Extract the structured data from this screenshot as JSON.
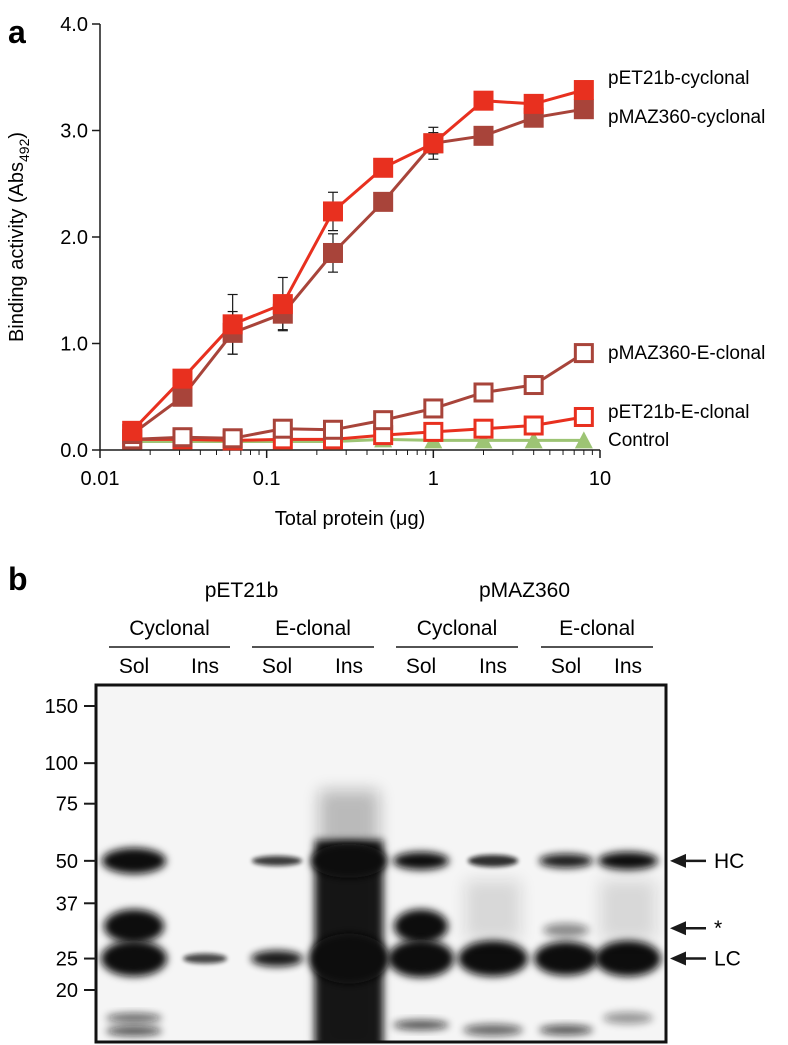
{
  "chart_data": [
    {
      "type": "line",
      "panel_label": "a",
      "xlabel_main": "Total protein (",
      "xlabel_unit": "μg",
      "xlabel_end": ")",
      "ylabel_main": "Binding activity (Abs",
      "ylabel_sub": "492",
      "ylabel_end": ")",
      "x_scale": "log",
      "xlim": [
        0.01,
        10
      ],
      "ylim": [
        0,
        4.0
      ],
      "x_ticks": [
        0.01,
        0.1,
        1,
        10
      ],
      "x_tick_labels": [
        "0.01",
        "0.1",
        "1",
        "10"
      ],
      "y_ticks": [
        0,
        1,
        2,
        3,
        4
      ],
      "y_tick_labels": [
        "0.0",
        "1.0",
        "2.0",
        "3.0",
        "4.0"
      ],
      "x": [
        0.0156,
        0.03125,
        0.0625,
        0.125,
        0.25,
        0.5,
        1,
        2,
        4,
        8
      ],
      "series": [
        {
          "name": "pET21b-cyclonal",
          "color": "#e8301f",
          "marker": "filled-square",
          "values": [
            0.18,
            0.67,
            1.18,
            1.37,
            2.24,
            2.65,
            2.88,
            3.28,
            3.25,
            3.38
          ],
          "error": [
            0,
            0,
            0.28,
            0.25,
            0.18,
            0,
            0.15,
            0,
            0,
            0
          ]
        },
        {
          "name": "pMAZ360-cyclonal",
          "color": "#a8443a",
          "marker": "filled-square",
          "values": [
            0.15,
            0.5,
            1.1,
            1.28,
            1.85,
            2.33,
            2.88,
            2.95,
            3.12,
            3.2
          ],
          "error": [
            0,
            0,
            0.2,
            0.15,
            0.18,
            0,
            0.1,
            0,
            0,
            0
          ]
        },
        {
          "name": "pMAZ360-E-clonal",
          "color": "#a8443a",
          "marker": "open-square",
          "values": [
            0.1,
            0.12,
            0.11,
            0.2,
            0.19,
            0.28,
            0.39,
            0.54,
            0.61,
            0.91
          ],
          "error": [
            0,
            0,
            0,
            0,
            0,
            0,
            0,
            0,
            0,
            0
          ]
        },
        {
          "name": "pET21b-E-clonal",
          "color": "#e8301f",
          "marker": "open-square",
          "values": [
            0.1,
            0.1,
            0.09,
            0.1,
            0.1,
            0.14,
            0.17,
            0.2,
            0.23,
            0.31
          ],
          "error": [
            0,
            0,
            0,
            0,
            0,
            0,
            0,
            0,
            0,
            0
          ]
        },
        {
          "name": "Control",
          "color": "#9dc474",
          "marker": "filled-triangle",
          "values": [
            0.08,
            0.08,
            0.08,
            0.08,
            0.08,
            0.1,
            0.09,
            0.09,
            0.09,
            0.09
          ],
          "error": [
            0,
            0,
            0,
            0,
            0,
            0,
            0,
            0,
            0,
            0
          ]
        }
      ]
    },
    {
      "type": "other",
      "panel_label": "b",
      "groups": [
        {
          "name": "pET21b",
          "subgroups": [
            {
              "name": "Cyclonal",
              "lanes": [
                "Sol",
                "Ins"
              ]
            },
            {
              "name": "E-clonal",
              "lanes": [
                "Sol",
                "Ins"
              ]
            }
          ]
        },
        {
          "name": "pMAZ360",
          "subgroups": [
            {
              "name": "Cyclonal",
              "lanes": [
                "Sol",
                "Ins"
              ]
            },
            {
              "name": "E-clonal",
              "lanes": [
                "Sol",
                "Ins"
              ]
            }
          ]
        }
      ],
      "markers": [
        {
          "label": "150",
          "kda": 150
        },
        {
          "label": "100",
          "kda": 100
        },
        {
          "label": "75",
          "kda": 75
        },
        {
          "label": "50",
          "kda": 50
        },
        {
          "label": "37",
          "kda": 37
        },
        {
          "label": "25",
          "kda": 25
        },
        {
          "label": "20",
          "kda": 20
        }
      ],
      "arrow_labels": [
        {
          "label": "HC",
          "kda": 50
        },
        {
          "label": "*",
          "kda": 31
        },
        {
          "label": "LC",
          "kda": 25
        }
      ]
    }
  ]
}
